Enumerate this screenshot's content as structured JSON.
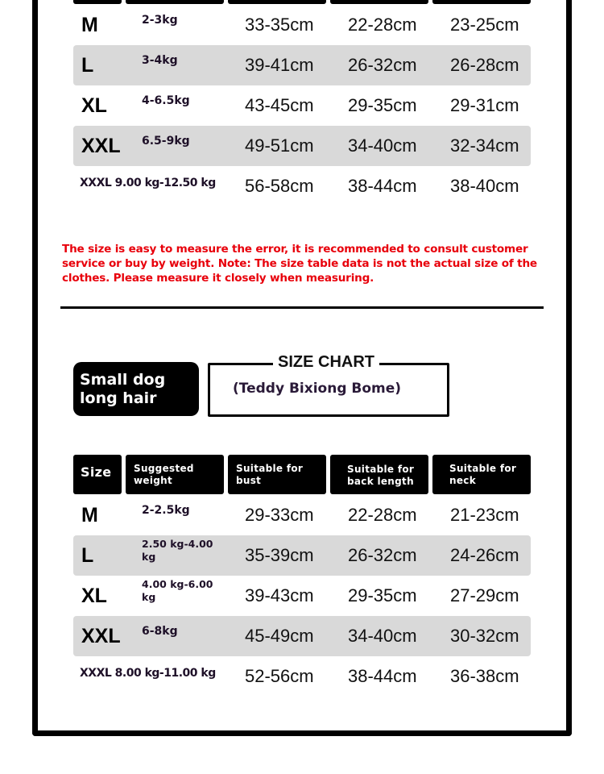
{
  "table1": {
    "rows": [
      {
        "size": "M",
        "weight": "2-3kg",
        "bust": "33-35cm",
        "back": "22-28cm",
        "neck": "23-25cm"
      },
      {
        "size": "L",
        "weight": "3-4kg",
        "bust": "39-41cm",
        "back": "26-32cm",
        "neck": "26-28cm"
      },
      {
        "size": "XL",
        "weight": "4-6.5kg",
        "bust": "43-45cm",
        "back": "29-35cm",
        "neck": "29-31cm"
      },
      {
        "size": "XXL",
        "weight": "6.5-9kg",
        "bust": "49-51cm",
        "back": "34-40cm",
        "neck": "32-34cm"
      },
      {
        "size_weight": "XXXL 9.00 kg-12.50 kg",
        "bust": "56-58cm",
        "back": "38-44cm",
        "neck": "38-40cm"
      }
    ]
  },
  "note": "The size is easy to measure the error, it is recommended to consult customer service or buy by weight. Note: The size table data is not the actual size of the clothes. Please measure it closely when measuring.",
  "badge": "Small dog long hair",
  "size_chart": {
    "title": "SIZE CHART",
    "subtitle": "(Teddy Bixiong Bome)"
  },
  "table2": {
    "headers": [
      "Size",
      "Suggested weight",
      "Suitable for bust",
      "Suitable for back length",
      "Suitable for neck"
    ],
    "rows": [
      {
        "size": "M",
        "weight": "2-2.5kg",
        "bust": "29-33cm",
        "back": "22-28cm",
        "neck": "21-23cm"
      },
      {
        "size": "L",
        "weight": "2.50 kg-4.00 kg",
        "bust": "35-39cm",
        "back": "26-32cm",
        "neck": "24-26cm"
      },
      {
        "size": "XL",
        "weight": "4.00 kg-6.00 kg",
        "bust": "39-43cm",
        "back": "29-35cm",
        "neck": "27-29cm"
      },
      {
        "size": "XXL",
        "weight": "6-8kg",
        "bust": "45-49cm",
        "back": "34-40cm",
        "neck": "30-32cm"
      },
      {
        "size_weight": "XXXL 8.00 kg-11.00 kg",
        "bust": "52-56cm",
        "back": "38-44cm",
        "neck": "36-38cm"
      }
    ]
  },
  "colors": {
    "note": "#e8000b",
    "header_bg": "#000000",
    "stripe": "#d9d9d9"
  }
}
